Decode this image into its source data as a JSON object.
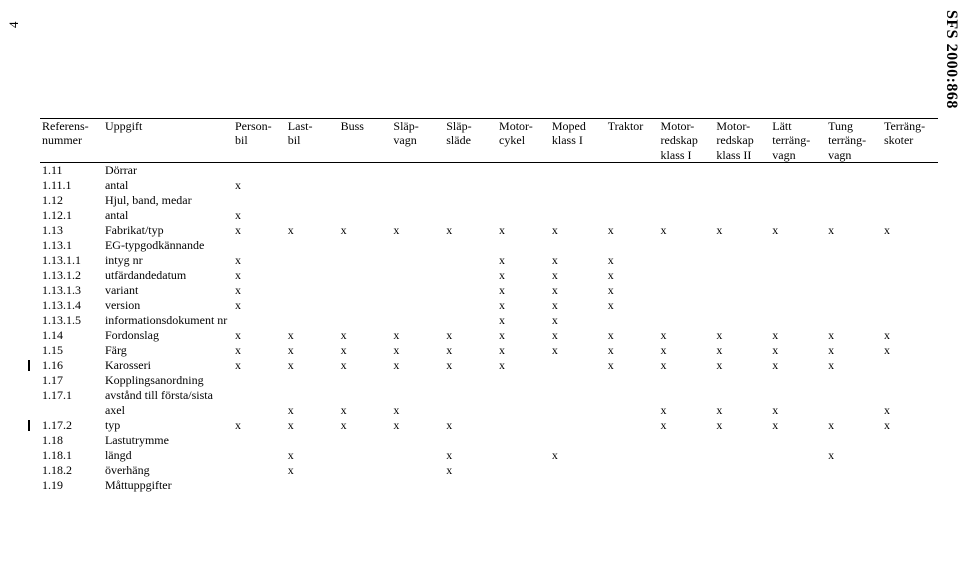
{
  "pageNumber": "4",
  "headerRight": "SFS 2000:868",
  "columns": [
    {
      "line1": "Referens-",
      "line2": "nummer",
      "line3": ""
    },
    {
      "line1": "Uppgift",
      "line2": "",
      "line3": ""
    },
    {
      "line1": "Person-",
      "line2": "bil",
      "line3": ""
    },
    {
      "line1": "Last-",
      "line2": "bil",
      "line3": ""
    },
    {
      "line1": "Buss",
      "line2": "",
      "line3": ""
    },
    {
      "line1": "Släp-",
      "line2": "vagn",
      "line3": ""
    },
    {
      "line1": "Släp-",
      "line2": "släde",
      "line3": ""
    },
    {
      "line1": "Motor-",
      "line2": "cykel",
      "line3": ""
    },
    {
      "line1": "Moped",
      "line2": "klass I",
      "line3": ""
    },
    {
      "line1": "Traktor",
      "line2": "",
      "line3": ""
    },
    {
      "line1": "Motor-",
      "line2": "redskap",
      "line3": "klass I"
    },
    {
      "line1": "Motor-",
      "line2": "redskap",
      "line3": "klass II"
    },
    {
      "line1": "Lätt",
      "line2": "terräng-",
      "line3": "vagn"
    },
    {
      "line1": "Tung",
      "line2": "terräng-",
      "line3": "vagn"
    },
    {
      "line1": "Terräng-",
      "line2": "skoter",
      "line3": ""
    }
  ],
  "rows": [
    {
      "ref": "1.11",
      "upp": "Dörrar",
      "marks": [
        "",
        "",
        "",
        "",
        "",
        "",
        "",
        "",
        "",
        "",
        "",
        "",
        ""
      ],
      "changed": false
    },
    {
      "ref": "1.11.1",
      "upp": "antal",
      "marks": [
        "x",
        "",
        "",
        "",
        "",
        "",
        "",
        "",
        "",
        "",
        "",
        "",
        ""
      ],
      "changed": false
    },
    {
      "ref": "1.12",
      "upp": "Hjul, band, medar",
      "marks": [
        "",
        "",
        "",
        "",
        "",
        "",
        "",
        "",
        "",
        "",
        "",
        "",
        ""
      ],
      "changed": false
    },
    {
      "ref": "1.12.1",
      "upp": "antal",
      "marks": [
        "x",
        "",
        "",
        "",
        "",
        "",
        "",
        "",
        "",
        "",
        "",
        "",
        ""
      ],
      "changed": false
    },
    {
      "ref": "1.13",
      "upp": "Fabrikat/typ",
      "marks": [
        "x",
        "x",
        "x",
        "x",
        "x",
        "x",
        "x",
        "x",
        "x",
        "x",
        "x",
        "x",
        "x"
      ],
      "changed": false
    },
    {
      "ref": "1.13.1",
      "upp": "EG-typgodkännande",
      "marks": [
        "",
        "",
        "",
        "",
        "",
        "",
        "",
        "",
        "",
        "",
        "",
        "",
        ""
      ],
      "changed": false
    },
    {
      "ref": "1.13.1.1",
      "upp": "intyg nr",
      "marks": [
        "x",
        "",
        "",
        "",
        "",
        "x",
        "x",
        "x",
        "",
        "",
        "",
        "",
        ""
      ],
      "changed": false
    },
    {
      "ref": "1.13.1.2",
      "upp": "utfärdandedatum",
      "marks": [
        "x",
        "",
        "",
        "",
        "",
        "x",
        "x",
        "x",
        "",
        "",
        "",
        "",
        ""
      ],
      "changed": false
    },
    {
      "ref": "1.13.1.3",
      "upp": "variant",
      "marks": [
        "x",
        "",
        "",
        "",
        "",
        "x",
        "x",
        "x",
        "",
        "",
        "",
        "",
        ""
      ],
      "changed": false
    },
    {
      "ref": "1.13.1.4",
      "upp": "version",
      "marks": [
        "x",
        "",
        "",
        "",
        "",
        "x",
        "x",
        "x",
        "",
        "",
        "",
        "",
        ""
      ],
      "changed": false
    },
    {
      "ref": "1.13.1.5",
      "upp": "informationsdokument nr",
      "marks": [
        "",
        "",
        "",
        "",
        "",
        "x",
        "x",
        "",
        "",
        "",
        "",
        "",
        ""
      ],
      "changed": false
    },
    {
      "ref": "1.14",
      "upp": "Fordonslag",
      "marks": [
        "x",
        "x",
        "x",
        "x",
        "x",
        "x",
        "x",
        "x",
        "x",
        "x",
        "x",
        "x",
        "x"
      ],
      "changed": false
    },
    {
      "ref": "1.15",
      "upp": "Färg",
      "marks": [
        "x",
        "x",
        "x",
        "x",
        "x",
        "x",
        "x",
        "x",
        "x",
        "x",
        "x",
        "x",
        "x"
      ],
      "changed": false
    },
    {
      "ref": "1.16",
      "upp": "Karosseri",
      "marks": [
        "x",
        "x",
        "x",
        "x",
        "x",
        "x",
        "",
        "x",
        "x",
        "x",
        "x",
        "x",
        ""
      ],
      "changed": true
    },
    {
      "ref": "1.17",
      "upp": "Kopplingsanordning",
      "marks": [
        "",
        "",
        "",
        "",
        "",
        "",
        "",
        "",
        "",
        "",
        "",
        "",
        ""
      ],
      "changed": false
    },
    {
      "ref": "1.17.1",
      "upp": "avstånd till första/sista",
      "marks": [
        "",
        "",
        "",
        "",
        "",
        "",
        "",
        "",
        "",
        "",
        "",
        "",
        ""
      ],
      "changed": false
    },
    {
      "ref": "",
      "upp": "axel",
      "marks": [
        "",
        "x",
        "x",
        "x",
        "",
        "",
        "",
        "",
        "x",
        "x",
        "x",
        "",
        "x"
      ],
      "changed": false
    },
    {
      "ref": "1.17.2",
      "upp": "typ",
      "marks": [
        "x",
        "x",
        "x",
        "x",
        "x",
        "",
        "",
        "",
        "x",
        "x",
        "x",
        "x",
        "x"
      ],
      "changed": true
    },
    {
      "ref": "1.18",
      "upp": "Lastutrymme",
      "marks": [
        "",
        "",
        "",
        "",
        "",
        "",
        "",
        "",
        "",
        "",
        "",
        "",
        ""
      ],
      "changed": false
    },
    {
      "ref": "1.18.1",
      "upp": "längd",
      "marks": [
        "",
        "x",
        "",
        "",
        "x",
        "",
        "x",
        "",
        "",
        "",
        "",
        "x",
        ""
      ],
      "changed": false
    },
    {
      "ref": "1.18.2",
      "upp": "överhäng",
      "marks": [
        "",
        "x",
        "",
        "",
        "x",
        "",
        "",
        "",
        "",
        "",
        "",
        "",
        ""
      ],
      "changed": false
    },
    {
      "ref": "1.19",
      "upp": "Måttuppgifter",
      "marks": [
        "",
        "",
        "",
        "",
        "",
        "",
        "",
        "",
        "",
        "",
        "",
        "",
        ""
      ],
      "changed": false
    }
  ]
}
